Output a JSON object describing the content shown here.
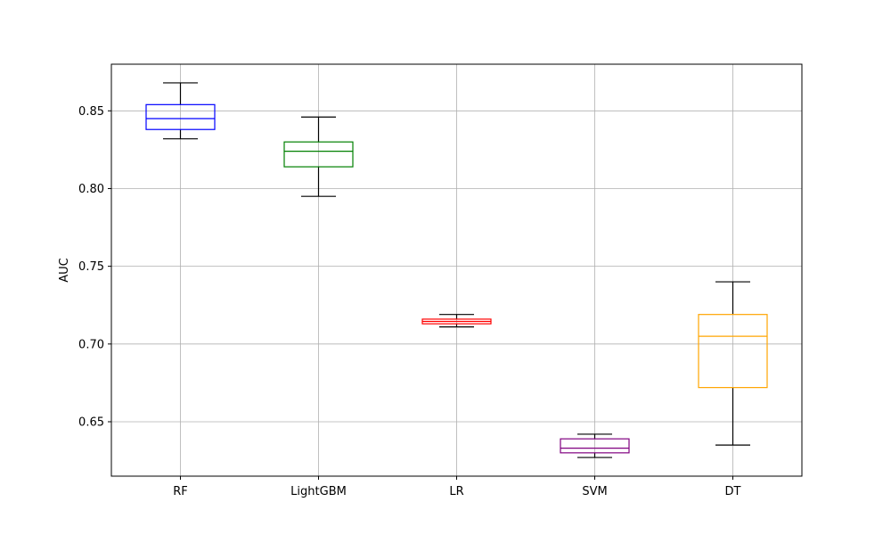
{
  "chart_data": {
    "type": "boxplot",
    "title": "",
    "xlabel": "",
    "ylabel": "AUC",
    "ylim": [
      0.615,
      0.88
    ],
    "yticks": [
      0.65,
      0.7,
      0.75,
      0.8,
      0.85
    ],
    "ytick_labels": [
      "0.65",
      "0.70",
      "0.75",
      "0.80",
      "0.85"
    ],
    "grid": true,
    "categories": [
      "RF",
      "LightGBM",
      "LR",
      "SVM",
      "DT"
    ],
    "boxes": [
      {
        "name": "RF",
        "color": "#0000ff",
        "whisker_low": 0.832,
        "q1": 0.838,
        "median": 0.845,
        "q3": 0.854,
        "whisker_high": 0.868
      },
      {
        "name": "LightGBM",
        "color": "#008000",
        "whisker_low": 0.795,
        "q1": 0.814,
        "median": 0.824,
        "q3": 0.83,
        "whisker_high": 0.846
      },
      {
        "name": "LR",
        "color": "#ff0000",
        "whisker_low": 0.711,
        "q1": 0.713,
        "median": 0.7145,
        "q3": 0.716,
        "whisker_high": 0.719
      },
      {
        "name": "SVM",
        "color": "#800080",
        "whisker_low": 0.627,
        "q1": 0.63,
        "median": 0.633,
        "q3": 0.639,
        "whisker_high": 0.642
      },
      {
        "name": "DT",
        "color": "#ffa500",
        "whisker_low": 0.635,
        "q1": 0.672,
        "median": 0.705,
        "q3": 0.719,
        "whisker_high": 0.74
      }
    ]
  }
}
